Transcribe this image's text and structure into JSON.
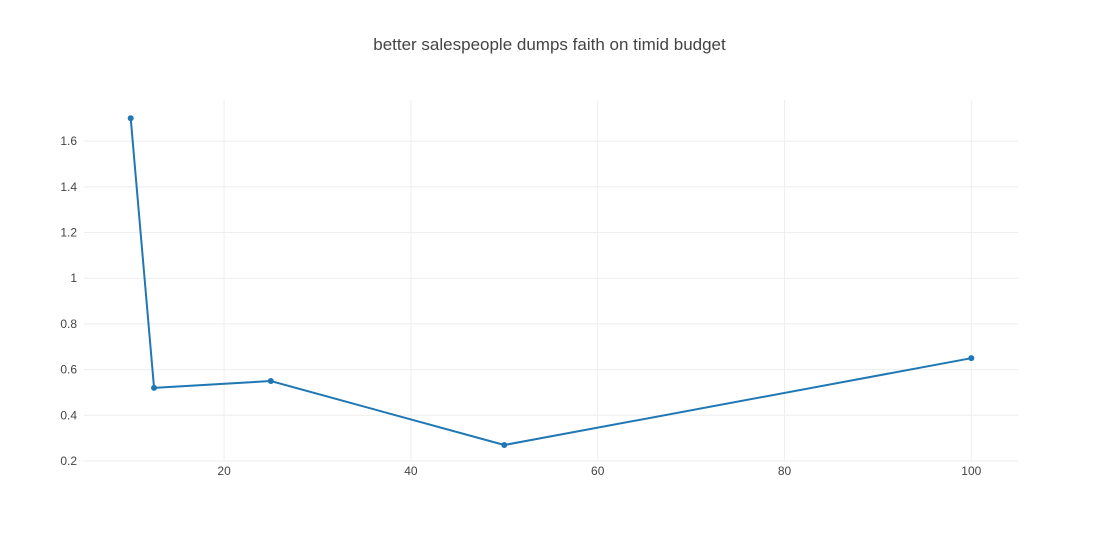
{
  "chart_data": {
    "type": "line",
    "title": "better salespeople dumps faith on timid budget",
    "xlabel": "",
    "ylabel": "",
    "x": [
      10,
      12.5,
      25,
      50,
      100
    ],
    "series": [
      {
        "values": [
          1.7,
          0.52,
          0.55,
          0.27,
          0.65
        ],
        "color": "#1f77b4"
      }
    ],
    "xlim": [
      5,
      105
    ],
    "ylim": [
      0.2,
      1.78
    ],
    "xticks": [
      20,
      40,
      60,
      80,
      100
    ],
    "yticks": [
      0.2,
      0.4,
      0.6,
      0.8,
      1,
      1.2,
      1.4,
      1.6
    ],
    "grid": true,
    "legend": "none"
  }
}
